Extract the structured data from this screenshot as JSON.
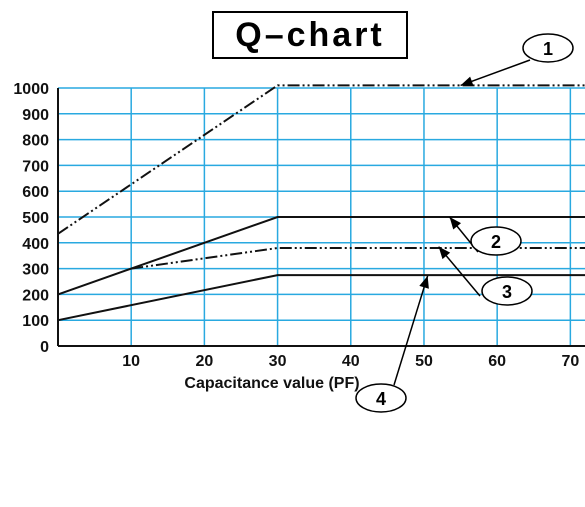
{
  "title": "Q–chart",
  "chart_data": {
    "type": "line",
    "title": "Q–chart",
    "xlabel": "Capacitance value (PF)",
    "ylabel": "",
    "xlim": [
      0,
      72
    ],
    "ylim": [
      0,
      1000
    ],
    "grid": true,
    "x_ticks": [
      "10",
      "20",
      "30",
      "40",
      "50",
      "60",
      "70"
    ],
    "y_ticks": [
      "0",
      "100",
      "200",
      "300",
      "400",
      "500",
      "600",
      "700",
      "800",
      "900",
      "1000"
    ],
    "series": [
      {
        "name": "1",
        "style": "dash-dot-dot",
        "x": [
          0,
          30,
          72
        ],
        "y": [
          435,
          1010,
          1010
        ]
      },
      {
        "name": "2",
        "style": "solid",
        "x": [
          0,
          30,
          72
        ],
        "y": [
          200,
          500,
          500
        ]
      },
      {
        "name": "3",
        "style": "dash-dot-dot",
        "x": [
          10,
          30,
          72
        ],
        "y": [
          300,
          380,
          380
        ]
      },
      {
        "name": "4",
        "style": "solid",
        "x": [
          0,
          30,
          72
        ],
        "y": [
          100,
          275,
          275
        ]
      }
    ],
    "colors": {
      "grid": "#29a9e0",
      "lines": "#111111"
    }
  }
}
